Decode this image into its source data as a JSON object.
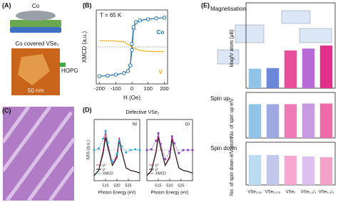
{
  "panels": {
    "a": {
      "label": "(A)",
      "top": "Co",
      "caption": "Co covered VSe₂",
      "hopg": "HOPG",
      "scale": "50 nm"
    },
    "b": {
      "label": "(B)"
    },
    "c": {
      "label": "(C)"
    },
    "d": {
      "label": "(D)"
    },
    "e": {
      "label": "(E)"
    }
  },
  "chart_data": [
    {
      "type": "line",
      "title": "T = 65 K",
      "xlabel": "H (Oe)",
      "ylabel": "XMCD (a.u.)",
      "xlim": [
        -220,
        220
      ],
      "xticks": [
        -200,
        -100,
        0,
        100,
        200
      ],
      "ylim": [
        -1.2,
        1.2
      ],
      "series": [
        {
          "name": "Co",
          "color": "#1f6fb5",
          "marker": "circle",
          "x": [
            -200,
            -150,
            -100,
            -50,
            -25,
            -10,
            0,
            10,
            25,
            50,
            100,
            150,
            200,
            200,
            150,
            100,
            50,
            25,
            10,
            0,
            -10,
            -25,
            -50,
            -100,
            -150,
            -200
          ],
          "values": [
            -0.95,
            -0.93,
            -0.9,
            -0.85,
            -0.78,
            -0.6,
            -0.1,
            0.6,
            0.8,
            0.86,
            0.9,
            0.93,
            0.95,
            0.95,
            0.93,
            0.9,
            0.86,
            0.8,
            0.65,
            0.1,
            -0.6,
            -0.78,
            -0.85,
            -0.9,
            -0.93,
            -0.95
          ]
        },
        {
          "name": "V",
          "color": "#f2b01e",
          "x": [
            -200,
            -150,
            -100,
            -50,
            0,
            50,
            100,
            150,
            200
          ],
          "values": [
            0.2,
            0.2,
            0.19,
            0.17,
            0.0,
            -0.12,
            -0.14,
            -0.15,
            -0.15
          ]
        }
      ]
    },
    {
      "type": "line",
      "title": "Defective VSe₂",
      "annotation": "NI",
      "xlabel": "Photon Energy (eV)",
      "ylabel": "XAS (a.u.)",
      "xlim": [
        510,
        530
      ],
      "xticks": [
        515,
        520,
        525
      ],
      "ylim": [
        0,
        1.2
      ],
      "y2lim": [
        -4,
        4
      ],
      "x": [
        510,
        512,
        514,
        515,
        516,
        518,
        520,
        521,
        522,
        524,
        526,
        528,
        530
      ],
      "series": [
        {
          "name": "μ⁺",
          "color": "#e8357a",
          "values": [
            0.1,
            0.2,
            0.6,
            0.95,
            0.7,
            0.3,
            0.5,
            0.85,
            0.6,
            0.25,
            0.2,
            0.18,
            0.15
          ]
        },
        {
          "name": "μ⁻",
          "color": "#222222",
          "values": [
            0.1,
            0.2,
            0.55,
            0.85,
            0.65,
            0.3,
            0.45,
            0.8,
            0.58,
            0.25,
            0.2,
            0.18,
            0.15
          ]
        },
        {
          "name": "XMCD",
          "color": "#29a9d6",
          "axis": "y2",
          "marker": "dot",
          "values": [
            0,
            0.2,
            1.5,
            2.5,
            1.0,
            -1.5,
            -0.5,
            1.2,
            0.5,
            -0.3,
            0,
            0.1,
            0
          ]
        }
      ]
    },
    {
      "type": "line",
      "annotation": "GI",
      "xlabel": "Photon Energy (eV)",
      "xlim": [
        510,
        530
      ],
      "xticks": [
        515,
        520,
        525
      ],
      "ylim": [
        0,
        1.2
      ],
      "y2lim": [
        -4,
        4
      ],
      "x": [
        510,
        512,
        514,
        515,
        516,
        518,
        520,
        521,
        522,
        524,
        526,
        528,
        530
      ],
      "series": [
        {
          "name": "μ⁺",
          "color": "#e8357a",
          "values": [
            0.1,
            0.2,
            0.58,
            0.9,
            0.68,
            0.3,
            0.48,
            0.88,
            0.62,
            0.25,
            0.2,
            0.18,
            0.15
          ]
        },
        {
          "name": "μ⁻",
          "color": "#222222",
          "values": [
            0.1,
            0.2,
            0.55,
            0.85,
            0.65,
            0.3,
            0.45,
            0.82,
            0.6,
            0.25,
            0.2,
            0.18,
            0.15
          ]
        },
        {
          "name": "XMCD",
          "color": "#8a3fbf",
          "axis": "y2",
          "marker": "dot",
          "values": [
            0,
            0.1,
            1.2,
            2.2,
            0.8,
            -1.2,
            -0.2,
            1.8,
            0.9,
            -0.4,
            0,
            0,
            0
          ]
        }
      ]
    },
    {
      "type": "bar",
      "title": "Magnetisation",
      "ylabel": "Mag/V atom (μB)",
      "ylim": [
        0,
        1.4
      ],
      "values": [
        0.32,
        0.33,
        0.62,
        0.65,
        0.7
      ],
      "colors": [
        "#8ec3ea",
        "#6a87d8",
        "#e84f9a",
        "#b56ad6",
        "#e0308a"
      ]
    },
    {
      "type": "bar",
      "title": "Spin up",
      "ylabel": "No. of spin up e/V",
      "ylim": [
        0,
        3.5
      ],
      "values": [
        2.6,
        2.6,
        2.6,
        2.65,
        2.65
      ],
      "colors": [
        "#8ec3ea",
        "#9fa8e0",
        "#f07ab5",
        "#c79ae0",
        "#ef6aa8"
      ]
    },
    {
      "type": "bar",
      "title": "Spin down",
      "ylabel": "No. of spin down e/V atom",
      "ylim": [
        0,
        3
      ],
      "values": [
        2.1,
        2.1,
        2.05,
        2.0,
        1.95
      ],
      "colors": [
        "#b9dcf3",
        "#c2c7ec",
        "#f5a7cf",
        "#dcc1ee",
        "#f3a1c8"
      ],
      "categories": [
        "VSe₂,₄₀",
        "VSe₂,₁₇₅",
        "VSe₂",
        "VSe₂,₁/₃",
        "VSe₂,₁/₄"
      ]
    }
  ]
}
